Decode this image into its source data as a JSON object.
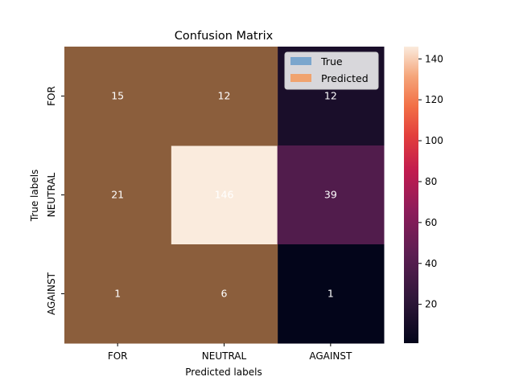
{
  "chart_data": {
    "type": "heatmap",
    "title": "Confusion Matrix",
    "xlabel": "Predicted labels",
    "ylabel": "True labels",
    "x_categories": [
      "FOR",
      "NEUTRAL",
      "AGAINST"
    ],
    "y_categories": [
      "FOR",
      "NEUTRAL",
      "AGAINST"
    ],
    "values": [
      [
        15,
        12,
        12
      ],
      [
        21,
        146,
        39
      ],
      [
        1,
        6,
        1
      ]
    ],
    "colorbar": {
      "range": [
        1,
        146
      ],
      "ticks": [
        20,
        40,
        60,
        80,
        100,
        120,
        140
      ],
      "colormap": "rocket"
    },
    "overlay_cells": [
      [
        0,
        0
      ],
      [
        0,
        1
      ],
      [
        1,
        0
      ],
      [
        2,
        0
      ],
      [
        2,
        1
      ]
    ],
    "overlay_color": "#8b5e3c",
    "legend": {
      "placement": "top-right",
      "entries": [
        {
          "label": "True",
          "color": "#7ba6cd"
        },
        {
          "label": "Predicted",
          "color": "#f0a36f"
        }
      ]
    },
    "annotation_color": "#ffffff",
    "grid": false
  }
}
